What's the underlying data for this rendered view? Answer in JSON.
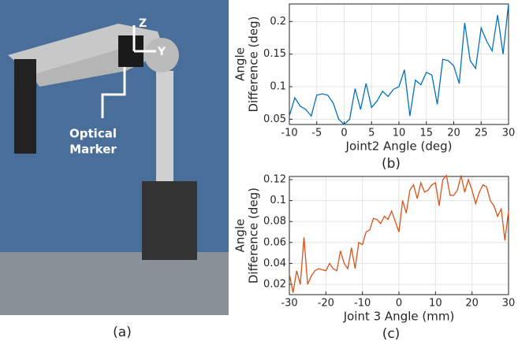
{
  "photo": {
    "axis_labels": [
      "Z",
      "Y"
    ],
    "marker_label": [
      "Optical",
      "Marker"
    ],
    "caption": "(a)"
  },
  "chart_data": [
    {
      "type": "line",
      "caption": "(b)",
      "xlabel": "Joint2 Angle (deg)",
      "ylabel": [
        "Angle",
        "Difference (deg)"
      ],
      "x": [
        -10,
        -9,
        -8,
        -7,
        -6,
        -5,
        -4,
        -3,
        -2,
        -1,
        0,
        1,
        2,
        3,
        4,
        5,
        6,
        7,
        8,
        9,
        10,
        11,
        12,
        13,
        14,
        15,
        16,
        17,
        18,
        19,
        20,
        21,
        22,
        23,
        24,
        25,
        26,
        27,
        28,
        29,
        30
      ],
      "series": [
        {
          "color": "#0072bd",
          "values": [
            0.055,
            0.083,
            0.07,
            0.065,
            0.055,
            0.087,
            0.089,
            0.087,
            0.075,
            0.05,
            0.042,
            0.05,
            0.097,
            0.065,
            0.105,
            0.068,
            0.078,
            0.093,
            0.085,
            0.096,
            0.1,
            0.126,
            0.055,
            0.11,
            0.103,
            0.122,
            0.118,
            0.073,
            0.142,
            0.14,
            0.132,
            0.105,
            0.198,
            0.14,
            0.128,
            0.19,
            0.17,
            0.155,
            0.21,
            0.15,
            0.227
          ]
        }
      ],
      "xlim": [
        -10,
        30
      ],
      "xticks": [
        -10,
        -5,
        0,
        5,
        10,
        15,
        20,
        25,
        30
      ],
      "ylim": [
        0.042,
        0.227
      ],
      "yticks": [
        0.05,
        0.1,
        0.15,
        0.2
      ],
      "grid": true
    },
    {
      "type": "line",
      "caption": "(c)",
      "xlabel": "Joint 3 Angle (mm)",
      "ylabel": [
        "Angle",
        "Difference (deg)"
      ],
      "x": [
        -30,
        -29,
        -28,
        -27,
        -26,
        -25,
        -24,
        -23,
        -22,
        -21,
        -20,
        -19,
        -18,
        -17,
        -16,
        -15,
        -14,
        -13,
        -12,
        -11,
        -10,
        -9,
        -8,
        -7,
        -6,
        -5,
        -4,
        -3,
        -2,
        -1,
        0,
        1,
        2,
        3,
        4,
        5,
        6,
        7,
        8,
        9,
        10,
        11,
        12,
        13,
        14,
        15,
        16,
        17,
        18,
        19,
        20,
        21,
        22,
        23,
        24,
        25,
        26,
        27,
        28,
        29,
        30
      ],
      "series": [
        {
          "color": "#d95319",
          "values": [
            0.03,
            0.012,
            0.033,
            0.02,
            0.065,
            0.02,
            0.028,
            0.033,
            0.035,
            0.034,
            0.033,
            0.04,
            0.035,
            0.033,
            0.052,
            0.04,
            0.035,
            0.055,
            0.035,
            0.06,
            0.058,
            0.07,
            0.072,
            0.083,
            0.082,
            0.078,
            0.085,
            0.082,
            0.09,
            0.08,
            0.07,
            0.1,
            0.088,
            0.11,
            0.115,
            0.102,
            0.117,
            0.108,
            0.11,
            0.115,
            0.117,
            0.095,
            0.12,
            0.124,
            0.105,
            0.105,
            0.11,
            0.124,
            0.108,
            0.12,
            0.11,
            0.097,
            0.108,
            0.115,
            0.113,
            0.1,
            0.095,
            0.085,
            0.092,
            0.062,
            0.09
          ]
        }
      ],
      "xlim": [
        -30,
        30
      ],
      "xticks": [
        -30,
        -20,
        -10,
        0,
        10,
        20,
        30
      ],
      "ylim": [
        0.0102,
        0.123
      ],
      "yticks": [
        0.02,
        0.04,
        0.06,
        0.08,
        0.1,
        0.12
      ],
      "grid": true
    }
  ]
}
